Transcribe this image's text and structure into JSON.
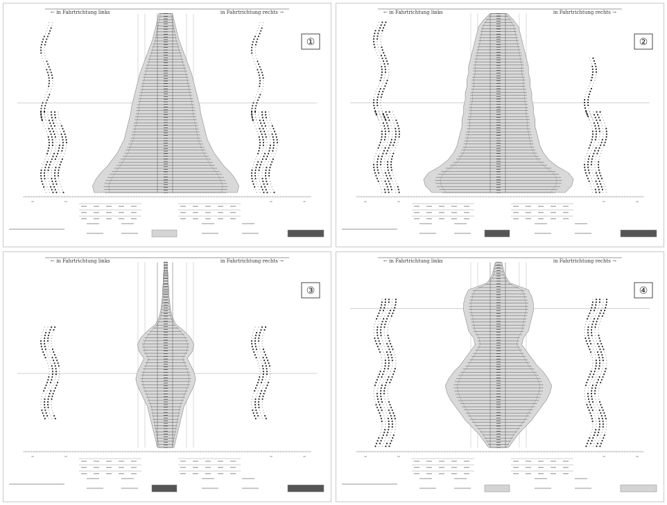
{
  "header": {
    "left": "← in Fahrtrichtung links",
    "right": "in Fahrtrichtung rechts →"
  },
  "panels": [
    {
      "number": "①",
      "profile": [
        8,
        10,
        12,
        14,
        16,
        19,
        22,
        25,
        28,
        31,
        33,
        35,
        37,
        39,
        41,
        42,
        44,
        46,
        48,
        50,
        54,
        58,
        64,
        70,
        78,
        84,
        88,
        86
      ],
      "left_blocks": [
        [
          0.05,
          0.6,
          2
        ],
        [
          0.55,
          1.0,
          6
        ]
      ],
      "right_blocks": [
        [
          0.05,
          0.6,
          2
        ],
        [
          0.55,
          1.0,
          6
        ]
      ],
      "band_top": 0.04,
      "band_bottom": 0.97,
      "middle_row": 0.5,
      "result_box_dark": false
    },
    {
      "number": "②",
      "profile": [
        10,
        18,
        24,
        26,
        28,
        30,
        32,
        34,
        36,
        36,
        38,
        38,
        40,
        40,
        42,
        42,
        44,
        44,
        46,
        48,
        50,
        54,
        60,
        70,
        84,
        90,
        88,
        80
      ],
      "left_blocks": [
        [
          0.05,
          0.6,
          3
        ],
        [
          0.55,
          1.0,
          6
        ]
      ],
      "right_blocks": [
        [
          0.25,
          0.6,
          2
        ],
        [
          0.55,
          1.0,
          5
        ]
      ],
      "band_top": 0.02,
      "band_bottom": 0.98,
      "middle_row": 0.5,
      "result_box_dark": true
    },
    {
      "number": "③",
      "profile": [
        2,
        2,
        3,
        3,
        4,
        4,
        5,
        6,
        8,
        12,
        22,
        30,
        34,
        32,
        26,
        30,
        34,
        36,
        34,
        30,
        26,
        22,
        20,
        18,
        16,
        14,
        12,
        10
      ],
      "left_blocks": [
        [
          0.35,
          0.85,
          4
        ]
      ],
      "right_blocks": [
        [
          0.35,
          0.85,
          4
        ]
      ],
      "band_top": 0.04,
      "band_bottom": 0.97,
      "middle_row": 0.6,
      "result_box_dark": true
    },
    {
      "number": "④",
      "profile": [
        4,
        6,
        8,
        14,
        36,
        40,
        42,
        42,
        40,
        38,
        36,
        30,
        28,
        34,
        40,
        46,
        54,
        60,
        64,
        62,
        58,
        52,
        46,
        40,
        32,
        24,
        18,
        12
      ],
      "left_blocks": [
        [
          0.2,
          1.0,
          5
        ]
      ],
      "right_blocks": [
        [
          0.2,
          1.0,
          5
        ]
      ],
      "band_top": 0.05,
      "band_bottom": 0.97,
      "middle_row": 0.25,
      "result_box_dark": false
    }
  ],
  "axis_labels": {
    "tick_left": "40",
    "tick_mid_left": "50",
    "tick_mid_right": "50",
    "tick_right": "40"
  }
}
